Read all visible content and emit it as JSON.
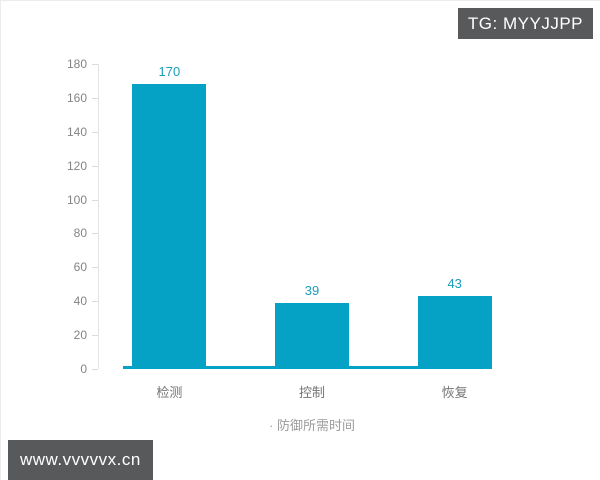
{
  "watermarks": {
    "top_badge": "TG: MYYJJPP",
    "bottom_badge": "www.vvvvvx.cn"
  },
  "chart_data": {
    "type": "bar",
    "title": "· 防御所需时间",
    "categories": [
      "检测",
      "控制",
      "恢复"
    ],
    "values": [
      170,
      39,
      43
    ],
    "xlabel": "",
    "ylabel": "",
    "ylim": [
      0,
      180
    ],
    "yticks": [
      0,
      20,
      40,
      60,
      80,
      100,
      120,
      140,
      160,
      180
    ],
    "grid": false,
    "legend_position": "none",
    "bar_color": "#06a2c6",
    "value_label_color": "#1a9cba",
    "axis_line_color": "#e4e4e4",
    "axis_label_color": "#848484",
    "badge_background_color": "#58595b"
  }
}
